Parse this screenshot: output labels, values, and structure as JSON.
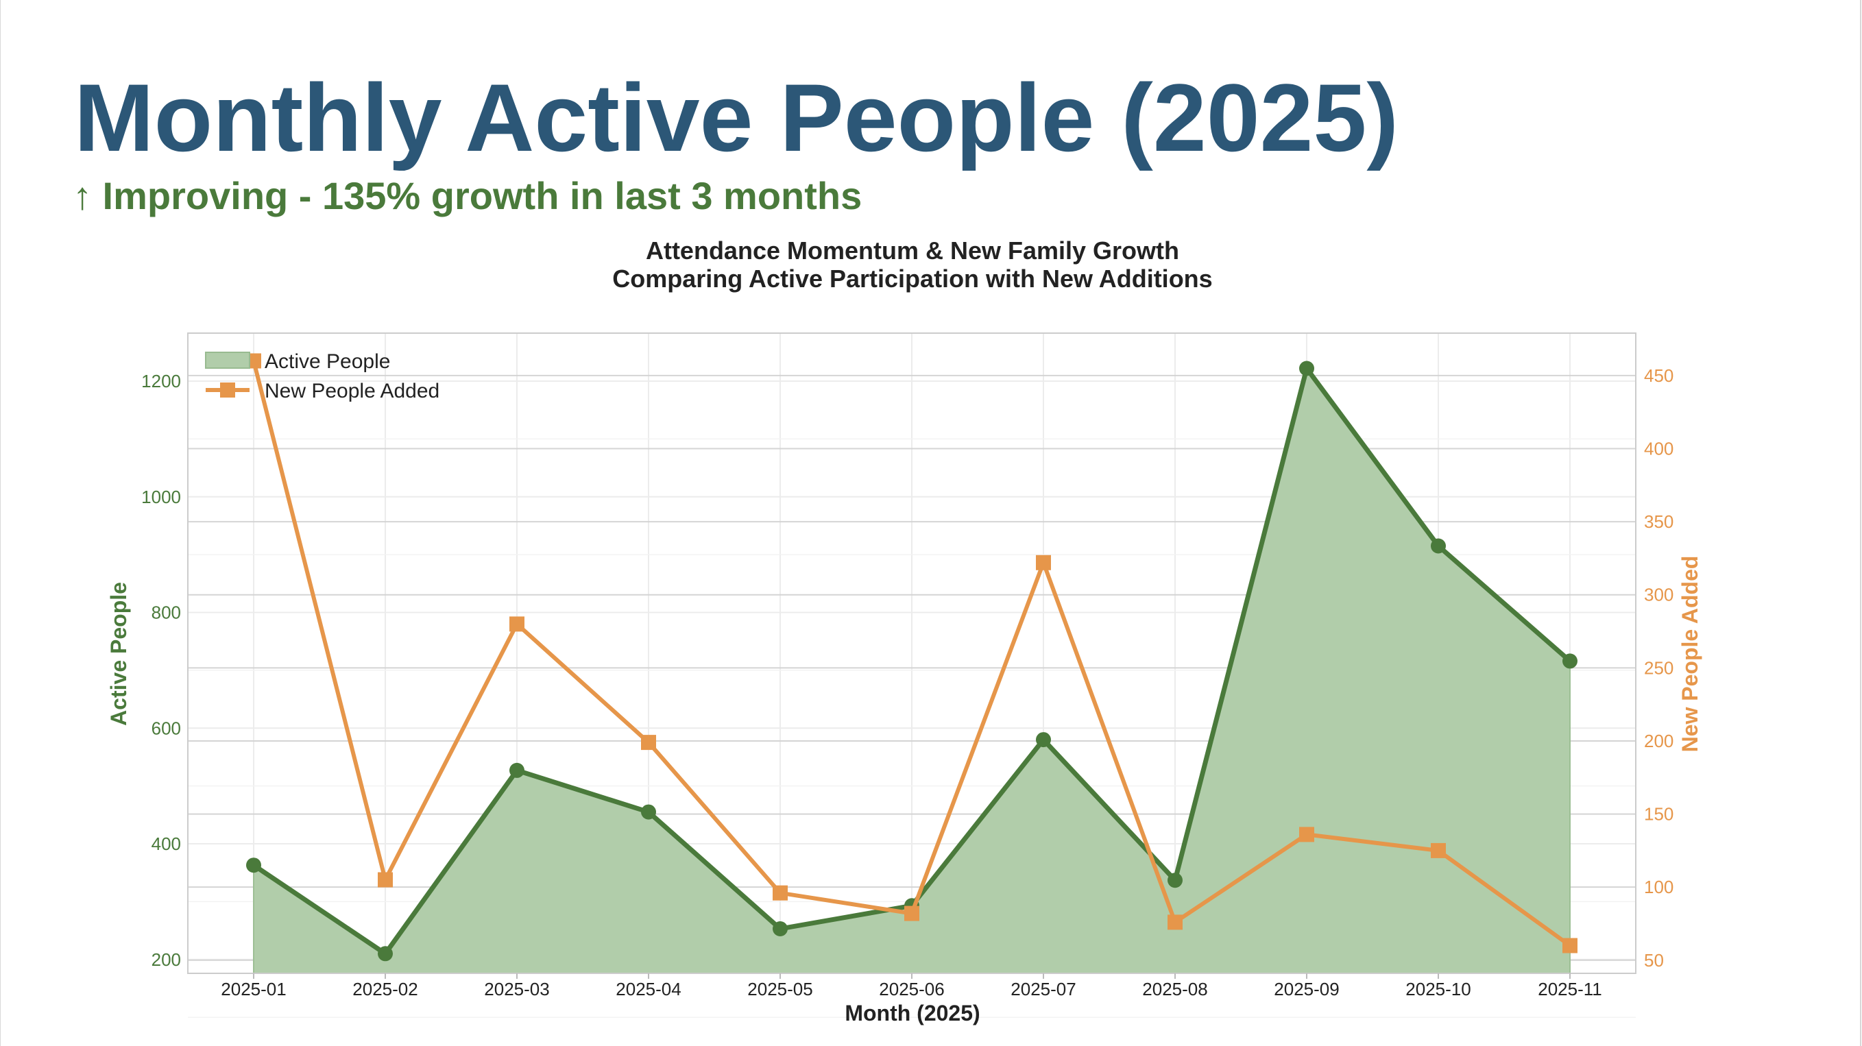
{
  "header": {
    "title": "Monthly Active People (2025)",
    "trend": "↑ Improving - 135% growth in last 3 months"
  },
  "colors": {
    "title": "#2c5777",
    "trend": "#4a7a3b",
    "active_line": "#4a7a3b",
    "active_fill": "#b1cdaa",
    "new_line": "#e6964a",
    "axis_text": "#222222"
  },
  "chart_data": {
    "type": "line",
    "title": "Attendance Momentum & New Family Growth",
    "subtitle": "Comparing Active Participation with New Additions",
    "xlabel": "Month (2025)",
    "ylabel_left": "Active People",
    "ylabel_right": "New People Added",
    "categories": [
      "2025-01",
      "2025-02",
      "2025-03",
      "2025-04",
      "2025-05",
      "2025-06",
      "2025-07",
      "2025-08",
      "2025-09",
      "2025-10",
      "2025-11"
    ],
    "series": [
      {
        "name": "Active People",
        "axis": "left",
        "style": "area-line-circle",
        "values": [
          363,
          210,
          527,
          455,
          253,
          293,
          580,
          337,
          1222,
          915,
          716
        ]
      },
      {
        "name": "New People Added",
        "axis": "right",
        "style": "line-square",
        "values": [
          460,
          105,
          280,
          199,
          96,
          82,
          322,
          76,
          136,
          125,
          60
        ]
      }
    ],
    "ylim_left": [
      176,
      1283
    ],
    "yticks_left": [
      200,
      400,
      600,
      800,
      1000,
      1200
    ],
    "ylim_right": [
      41,
      479
    ],
    "yticks_right": [
      50,
      100,
      150,
      200,
      250,
      300,
      350,
      400,
      450
    ],
    "grid": true,
    "legend": "top-left"
  }
}
